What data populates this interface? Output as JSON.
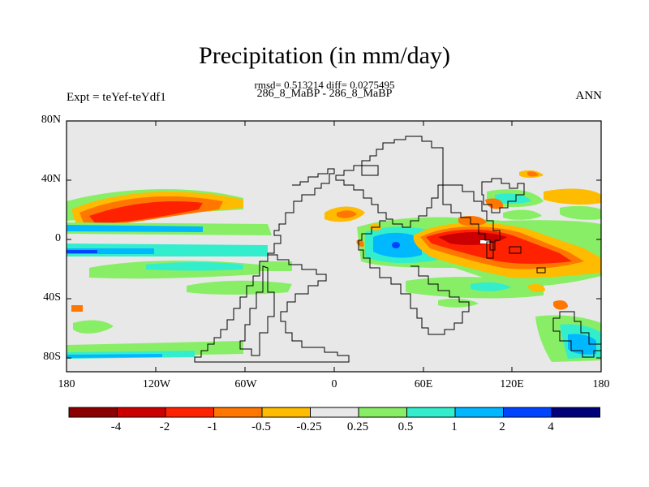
{
  "title": "Precipitation (in mm/day)",
  "stats_line": "rmsd= 0.513214 diff= 0.0275495",
  "cases_line": "286_8_MaBP - 286_8_MaBP",
  "expt_label": "Expt = teYef-teYdf1",
  "season_label": "ANN",
  "map": {
    "background_color": "#e8e8e8",
    "lat_ticks": [
      "80N",
      "40N",
      "0",
      "40S",
      "80S"
    ],
    "lon_ticks": [
      "180",
      "120W",
      "60W",
      "0",
      "60E",
      "120E",
      "180"
    ]
  },
  "colorbar": {
    "colors": [
      "#8b0000",
      "#cc0000",
      "#ff2200",
      "#ff7700",
      "#ffbb00",
      "#e8e8e8",
      "#88ee66",
      "#33eecc",
      "#00b8ff",
      "#0044ff",
      "#00007a"
    ],
    "labels": [
      "-4",
      "-2",
      "-1",
      "-0.5",
      "-0.25",
      "0.25",
      "0.5",
      "1",
      "2",
      "4"
    ]
  }
}
